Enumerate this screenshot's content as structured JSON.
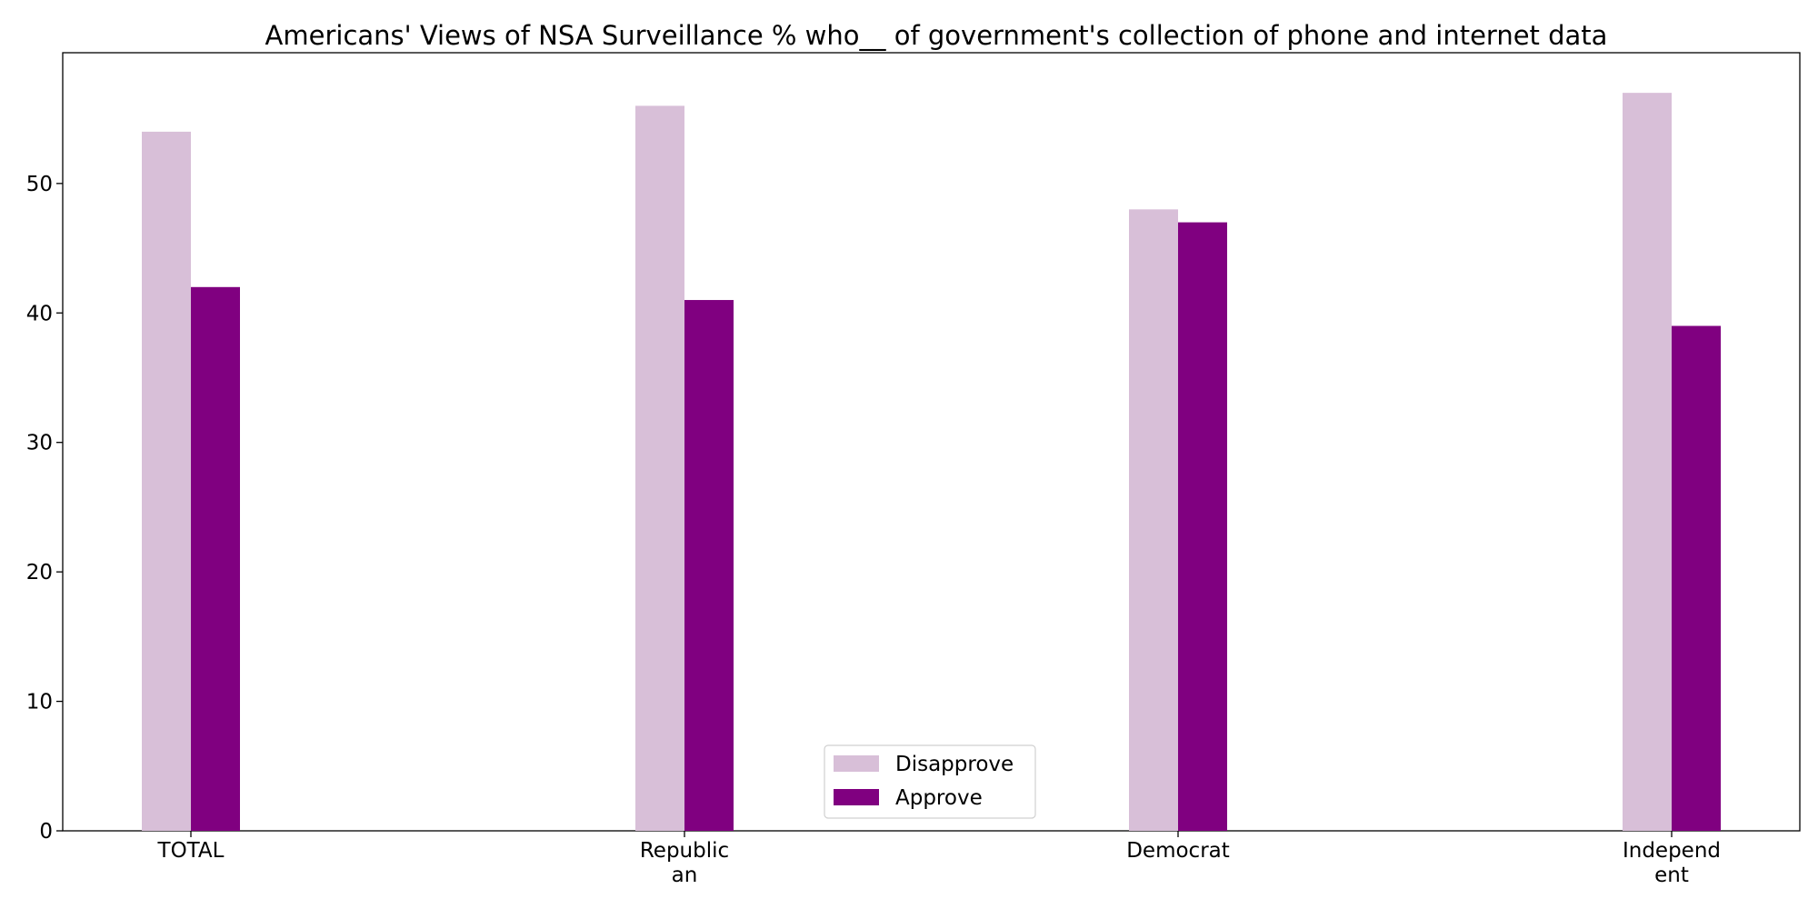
{
  "chart_data": {
    "type": "bar",
    "title": "Americans' Views of NSA Surveillance % who__ of government's collection of phone and internet data",
    "xlabel": "",
    "ylabel": "",
    "categories": [
      [
        "TOTAL"
      ],
      [
        "Republic",
        "an"
      ],
      [
        "Democrat"
      ],
      [
        "Independ",
        "ent"
      ]
    ],
    "series": [
      {
        "name": "Disapprove",
        "color": "#d8bfd8",
        "values": [
          54,
          56,
          48,
          57
        ]
      },
      {
        "name": "Approve",
        "color": "#800080",
        "values": [
          42,
          41,
          47,
          39
        ]
      }
    ],
    "ylim": [
      0,
      60
    ],
    "yticks": [
      0,
      10,
      20,
      30,
      40,
      50
    ],
    "grid": false,
    "legend_placement": "lower-center"
  }
}
